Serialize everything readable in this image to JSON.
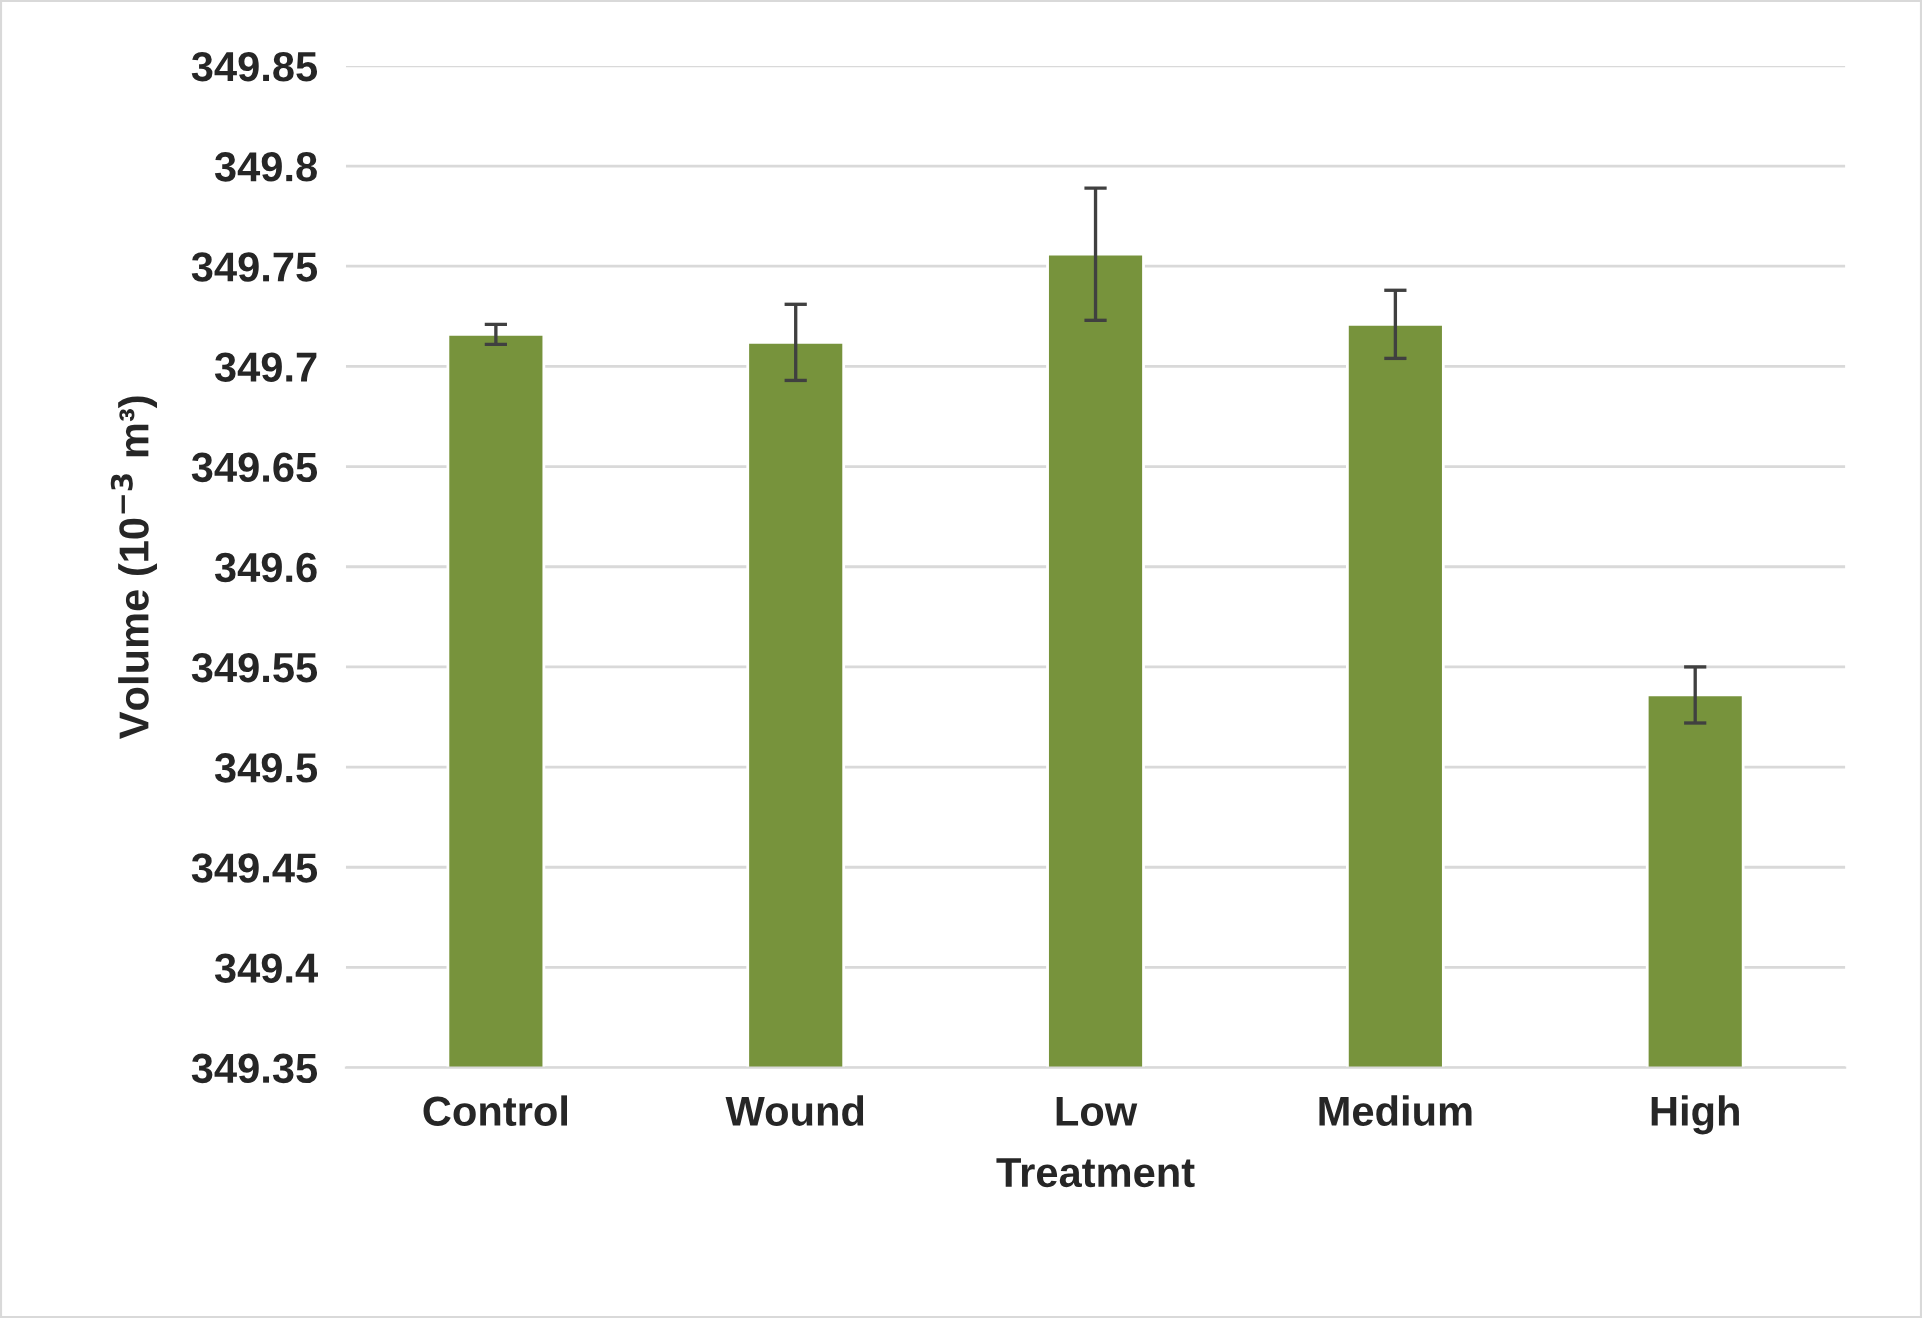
{
  "chart_data": {
    "type": "bar",
    "xlabel": "Treatment",
    "ylabel": "Volume (10$^{−3}$ m³)",
    "categories": [
      "Control",
      "Wound",
      "Low",
      "Medium",
      "High"
    ],
    "values": [
      349.716,
      349.712,
      349.756,
      349.721,
      349.536
    ],
    "errors": [
      0.005,
      0.019,
      0.033,
      0.017,
      0.014
    ],
    "color": "#77933c",
    "ylim": [
      349.35,
      349.85
    ],
    "yticks": [
      {
        "value": 349.35,
        "label": "349.35"
      },
      {
        "value": 349.4,
        "label": "349.4"
      },
      {
        "value": 349.45,
        "label": "349.45"
      },
      {
        "value": 349.5,
        "label": "349.5"
      },
      {
        "value": 349.55,
        "label": "349.55"
      },
      {
        "value": 349.6,
        "label": "349.6"
      },
      {
        "value": 349.65,
        "label": "349.65"
      },
      {
        "value": 349.7,
        "label": "349.7"
      },
      {
        "value": 349.75,
        "label": "349.75"
      },
      {
        "value": 349.8,
        "label": "349.8"
      },
      {
        "value": 349.85,
        "label": "349.85"
      }
    ],
    "grid": "y",
    "legend": false
  }
}
